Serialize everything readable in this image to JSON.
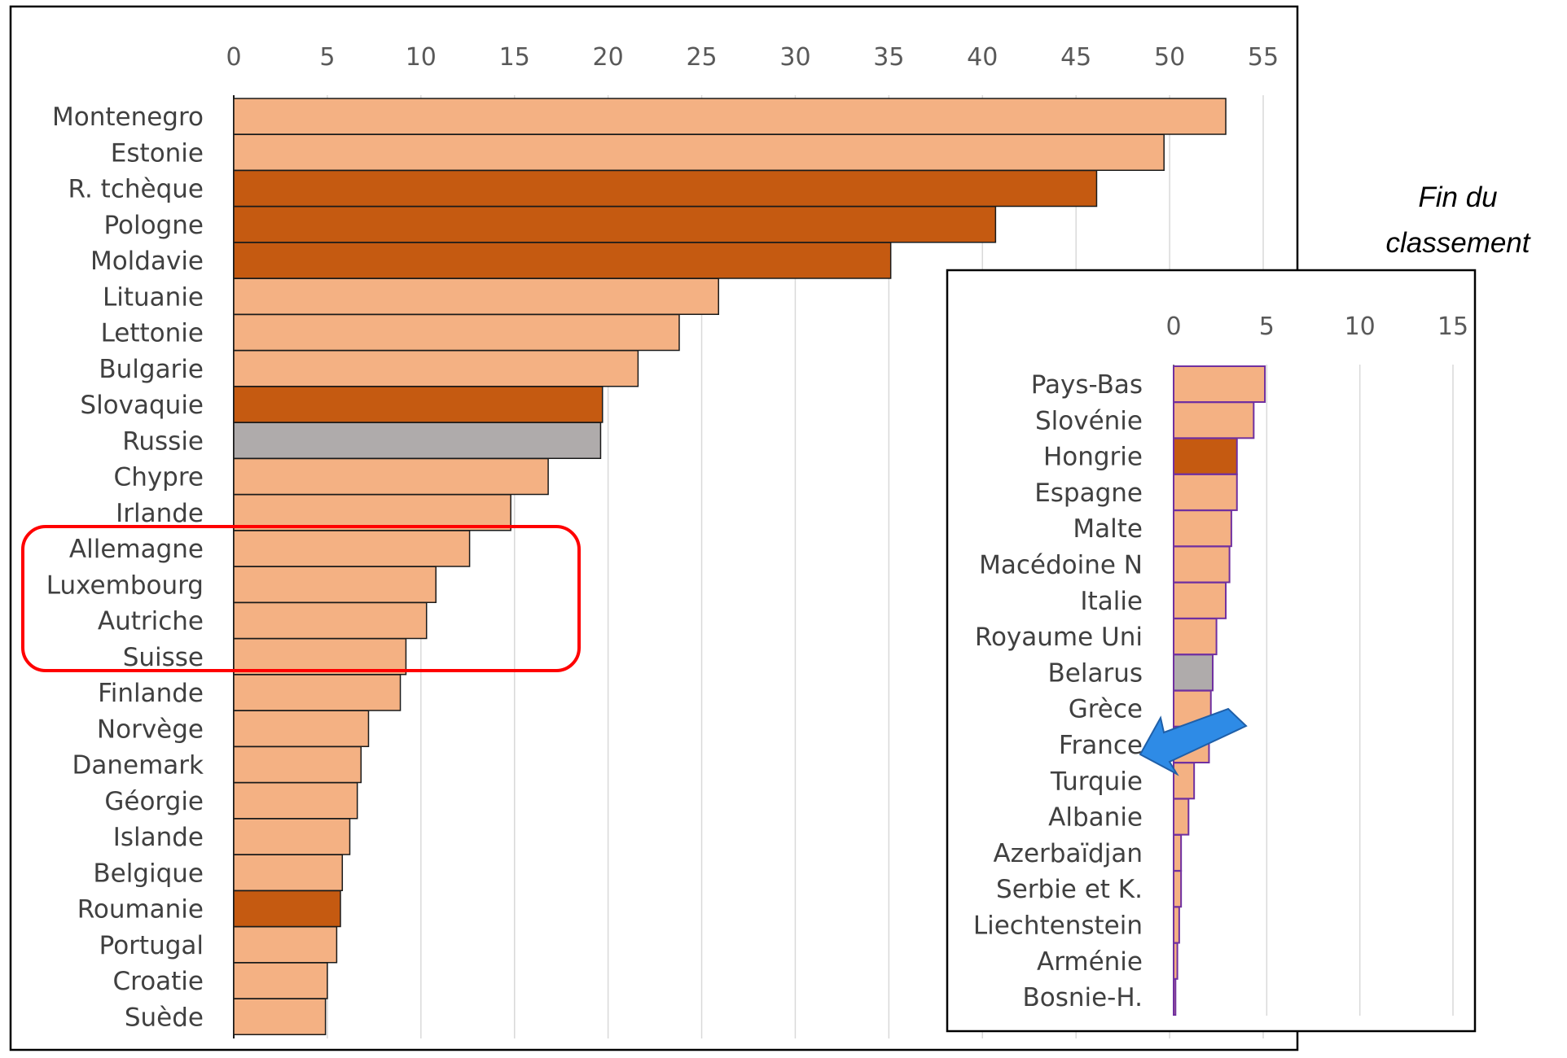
{
  "note": {
    "line1": "Fin du",
    "line2": "classement"
  },
  "colors": {
    "light": "#F4B183",
    "dark": "#C55A11",
    "gray": "#AFABAB",
    "highlight_box": "#FF0000",
    "arrow": "#2E8BE6",
    "inset_bar_border": "#7030A0"
  },
  "chart_data": [
    {
      "type": "bar",
      "orientation": "horizontal",
      "xlim": [
        0,
        55
      ],
      "ticks": [
        0,
        5,
        10,
        15,
        20,
        25,
        30,
        35,
        40,
        45,
        50,
        55
      ],
      "grid": true,
      "categories": [
        "Montenegro",
        "Estonie",
        "R. tchèque",
        "Pologne",
        "Moldavie",
        "Lituanie",
        "Lettonie",
        "Bulgarie",
        "Slovaquie",
        "Russie",
        "Chypre",
        "Irlande",
        "Allemagne",
        "Luxembourg",
        "Autriche",
        "Suisse",
        "Finlande",
        "Norvège",
        "Danemark",
        "Géorgie",
        "Islande",
        "Belgique",
        "Roumanie",
        "Portugal",
        "Croatie",
        "Suède"
      ],
      "values": [
        53,
        49.7,
        46.1,
        40.7,
        35.1,
        25.9,
        23.8,
        21.6,
        19.7,
        19.6,
        16.8,
        14.8,
        12.6,
        10.8,
        10.3,
        9.2,
        8.9,
        7.2,
        6.8,
        6.6,
        6.2,
        5.8,
        5.7,
        5.5,
        5.0,
        4.9
      ],
      "bar_color_keys": [
        "light",
        "light",
        "dark",
        "dark",
        "dark",
        "light",
        "light",
        "light",
        "dark",
        "gray",
        "light",
        "light",
        "light",
        "light",
        "light",
        "light",
        "light",
        "light",
        "light",
        "light",
        "light",
        "light",
        "dark",
        "light",
        "light",
        "light"
      ],
      "highlighted": [
        "Allemagne",
        "Luxembourg",
        "Autriche",
        "Suisse"
      ]
    },
    {
      "type": "bar",
      "orientation": "horizontal",
      "title": "Fin du classement",
      "xlim": [
        0,
        15
      ],
      "ticks": [
        0,
        5,
        10,
        15
      ],
      "grid": true,
      "categories": [
        "Pays-Bas",
        "Slovénie",
        "Hongrie",
        "Espagne",
        "Malte",
        "Macédoine N",
        "Italie",
        "Royaume Uni",
        "Belarus",
        "Grèce",
        "France",
        "Turquie",
        "Albanie",
        "Azerbaïdjan",
        "Serbie et K.",
        "Liechtenstein",
        "Arménie",
        "Bosnie-H."
      ],
      "values": [
        4.9,
        4.3,
        3.4,
        3.4,
        3.1,
        3.0,
        2.8,
        2.3,
        2.1,
        2.0,
        1.9,
        1.1,
        0.8,
        0.4,
        0.4,
        0.3,
        0.2,
        0.1
      ],
      "bar_color_keys": [
        "light",
        "light",
        "dark",
        "light",
        "light",
        "light",
        "light",
        "light",
        "gray",
        "light",
        "light",
        "light",
        "light",
        "light",
        "light",
        "light",
        "light",
        "light"
      ],
      "pointed": "France"
    }
  ]
}
